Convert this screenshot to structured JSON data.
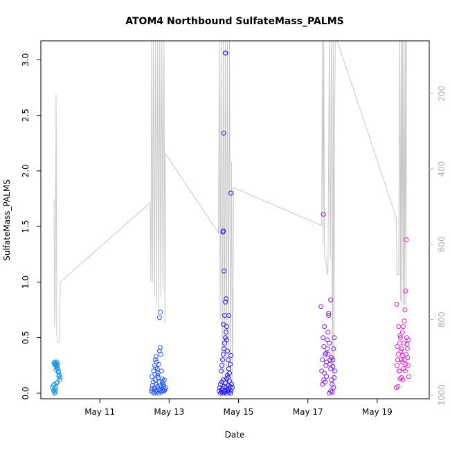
{
  "chart_data": {
    "type": "scatter",
    "title": "ATOM4 Northbound SulfateMass_PALMS",
    "xlabel": "Date",
    "ylabel": "SulfateMass_PALMS",
    "x_unit": "days (May 2017, decimal day of month)",
    "xlim": [
      9.3,
      20.5
    ],
    "ylim": [
      -0.05,
      3.17
    ],
    "x_ticks": [
      {
        "value": 11,
        "label": "May 11"
      },
      {
        "value": 13,
        "label": "May 13"
      },
      {
        "value": 15,
        "label": "May 15"
      },
      {
        "value": 17,
        "label": "May 17"
      },
      {
        "value": 19,
        "label": "May 19"
      }
    ],
    "y_ticks": [
      {
        "value": 0.0,
        "label": "0.0"
      },
      {
        "value": 0.5,
        "label": "0.5"
      },
      {
        "value": 1.0,
        "label": "1.0"
      },
      {
        "value": 1.5,
        "label": "1.5"
      },
      {
        "value": 2.0,
        "label": "2.0"
      },
      {
        "value": 2.5,
        "label": "2.5"
      },
      {
        "value": 3.0,
        "label": "3.0"
      }
    ],
    "y2_ticks": [
      {
        "value": 200,
        "label": "200"
      },
      {
        "value": 400,
        "label": "400"
      },
      {
        "value": 600,
        "label": "600"
      },
      {
        "value": 800,
        "label": "800"
      },
      {
        "value": 1000,
        "label": "1000"
      }
    ],
    "y2_reversed": true,
    "y2_lim": [
      60,
      1010
    ],
    "grid": false,
    "legend": "none",
    "pressure_line": {
      "color": "#c8c8c8",
      "points": [
        [
          9.68,
          480
        ],
        [
          9.7,
          820
        ],
        [
          9.72,
          710
        ],
        [
          9.74,
          200
        ],
        [
          9.76,
          840
        ],
        [
          9.78,
          860
        ],
        [
          9.8,
          860
        ],
        [
          9.82,
          860
        ],
        [
          9.84,
          840
        ],
        [
          9.86,
          700
        ],
        [
          12.45,
          490
        ],
        [
          12.47,
          700
        ],
        [
          12.5,
          50
        ],
        [
          12.52,
          700
        ],
        [
          12.55,
          50
        ],
        [
          12.58,
          740
        ],
        [
          12.61,
          50
        ],
        [
          12.64,
          760
        ],
        [
          12.67,
          50
        ],
        [
          12.7,
          780
        ],
        [
          12.73,
          50
        ],
        [
          12.76,
          740
        ],
        [
          12.79,
          50
        ],
        [
          12.82,
          720
        ],
        [
          12.85,
          50
        ],
        [
          12.88,
          810
        ],
        [
          12.9,
          360
        ],
        [
          14.42,
          570
        ],
        [
          14.45,
          50
        ],
        [
          14.47,
          800
        ],
        [
          14.5,
          50
        ],
        [
          14.53,
          1000
        ],
        [
          14.56,
          50
        ],
        [
          14.59,
          980
        ],
        [
          14.62,
          50
        ],
        [
          14.65,
          1000
        ],
        [
          14.68,
          50
        ],
        [
          14.71,
          980
        ],
        [
          14.74,
          50
        ],
        [
          14.77,
          1000
        ],
        [
          14.8,
          380
        ],
        [
          14.83,
          1000
        ],
        [
          14.86,
          450
        ],
        [
          17.4,
          550
        ],
        [
          17.42,
          50
        ],
        [
          17.44,
          600
        ],
        [
          17.46,
          50
        ],
        [
          17.48,
          620
        ],
        [
          17.5,
          640
        ],
        [
          17.52,
          640
        ],
        [
          17.54,
          660
        ],
        [
          17.56,
          680
        ],
        [
          17.58,
          670
        ],
        [
          17.62,
          50
        ],
        [
          17.65,
          640
        ],
        [
          17.68,
          50
        ],
        [
          17.71,
          1000
        ],
        [
          17.73,
          50
        ],
        [
          17.75,
          1000
        ],
        [
          17.77,
          300
        ],
        [
          17.79,
          50
        ],
        [
          17.81,
          50
        ],
        [
          19.55,
          530
        ],
        [
          19.57,
          680
        ],
        [
          19.6,
          680
        ],
        [
          19.62,
          680
        ],
        [
          19.65,
          50
        ],
        [
          19.67,
          750
        ],
        [
          19.69,
          50
        ],
        [
          19.71,
          760
        ],
        [
          19.73,
          50
        ],
        [
          19.75,
          760
        ],
        [
          19.77,
          50
        ],
        [
          19.79,
          760
        ],
        [
          19.81,
          50
        ],
        [
          19.83,
          760
        ],
        [
          19.85,
          50
        ]
      ]
    },
    "series": [
      {
        "color": "#1e9be6",
        "points": [
          [
            9.64,
            0.05
          ],
          [
            9.66,
            0.07
          ],
          [
            9.67,
            0.02
          ],
          [
            9.68,
            0.03
          ],
          [
            9.69,
            0.08
          ],
          [
            9.7,
            0.0
          ],
          [
            9.71,
            0.01
          ],
          [
            9.68,
            0.27
          ],
          [
            9.69,
            0.26
          ],
          [
            9.7,
            0.28
          ],
          [
            9.72,
            0.25
          ],
          [
            9.73,
            0.27
          ],
          [
            9.74,
            0.26
          ],
          [
            9.75,
            0.24
          ],
          [
            9.76,
            0.28
          ],
          [
            9.77,
            0.25
          ],
          [
            9.78,
            0.26
          ],
          [
            9.79,
            0.22
          ],
          [
            9.8,
            0.19
          ],
          [
            9.81,
            0.2
          ],
          [
            9.82,
            0.15
          ],
          [
            9.83,
            0.17
          ],
          [
            9.84,
            0.16
          ],
          [
            9.85,
            0.12
          ],
          [
            9.86,
            0.14
          ],
          [
            9.75,
            0.09
          ],
          [
            9.73,
            0.06
          ],
          [
            9.72,
            0.04
          ],
          [
            9.71,
            0.02
          ],
          [
            9.74,
            0.21
          ],
          [
            9.76,
            0.23
          ],
          [
            9.78,
            0.1
          ]
        ]
      },
      {
        "color": "#2a59f0",
        "points": [
          [
            12.48,
            0.02
          ],
          [
            12.5,
            0.04
          ],
          [
            12.52,
            0.07
          ],
          [
            12.54,
            0.1
          ],
          [
            12.56,
            0.03
          ],
          [
            12.58,
            0.05
          ],
          [
            12.6,
            0.12
          ],
          [
            12.62,
            0.08
          ],
          [
            12.64,
            0.02
          ],
          [
            12.66,
            0.06
          ],
          [
            12.68,
            0.14
          ],
          [
            12.7,
            0.04
          ],
          [
            12.72,
            0.1
          ],
          [
            12.74,
            0.03
          ],
          [
            12.76,
            0.07
          ],
          [
            12.78,
            0.05
          ],
          [
            12.8,
            0.09
          ],
          [
            12.82,
            0.02
          ],
          [
            12.84,
            0.06
          ],
          [
            12.86,
            0.04
          ],
          [
            12.5,
            0.15
          ],
          [
            12.55,
            0.2
          ],
          [
            12.58,
            0.25
          ],
          [
            12.6,
            0.3
          ],
          [
            12.62,
            0.33
          ],
          [
            12.64,
            0.28
          ],
          [
            12.66,
            0.22
          ],
          [
            12.68,
            0.18
          ],
          [
            12.7,
            0.26
          ],
          [
            12.72,
            0.38
          ],
          [
            12.74,
            0.41
          ],
          [
            12.76,
            0.35
          ],
          [
            12.78,
            0.2
          ],
          [
            12.8,
            0.13
          ],
          [
            12.82,
            0.11
          ],
          [
            12.84,
            0.08
          ],
          [
            12.86,
            0.12
          ],
          [
            12.88,
            0.03
          ],
          [
            12.9,
            0.05
          ],
          [
            12.72,
            0.68
          ],
          [
            12.75,
            0.73
          ],
          [
            12.53,
            0.01
          ],
          [
            12.57,
            0.0
          ],
          [
            12.63,
            0.01
          ],
          [
            12.69,
            0.0
          ],
          [
            12.73,
            0.02
          ],
          [
            12.77,
            0.01
          ],
          [
            12.81,
            0.03
          ],
          [
            12.85,
            0.02
          ],
          [
            12.59,
            0.17
          ],
          [
            12.61,
            0.23
          ],
          [
            12.67,
            0.16
          ]
        ]
      },
      {
        "color": "#2a1ee8",
        "points": [
          [
            14.44,
            0.02
          ],
          [
            14.46,
            0.05
          ],
          [
            14.48,
            0.08
          ],
          [
            14.5,
            0.03
          ],
          [
            14.52,
            0.1
          ],
          [
            14.54,
            0.04
          ],
          [
            14.56,
            0.12
          ],
          [
            14.58,
            0.06
          ],
          [
            14.6,
            0.02
          ],
          [
            14.62,
            0.09
          ],
          [
            14.64,
            0.05
          ],
          [
            14.66,
            0.13
          ],
          [
            14.68,
            0.03
          ],
          [
            14.7,
            0.07
          ],
          [
            14.72,
            0.04
          ],
          [
            14.74,
            0.11
          ],
          [
            14.76,
            0.06
          ],
          [
            14.78,
            0.02
          ],
          [
            14.8,
            0.08
          ],
          [
            14.82,
            0.05
          ],
          [
            14.5,
            0.2
          ],
          [
            14.52,
            0.25
          ],
          [
            14.54,
            0.3
          ],
          [
            14.56,
            0.35
          ],
          [
            14.58,
            0.4
          ],
          [
            14.6,
            0.45
          ],
          [
            14.62,
            0.5
          ],
          [
            14.64,
            0.55
          ],
          [
            14.66,
            0.48
          ],
          [
            14.68,
            0.38
          ],
          [
            14.7,
            0.3
          ],
          [
            14.72,
            0.22
          ],
          [
            14.74,
            0.18
          ],
          [
            14.76,
            0.26
          ],
          [
            14.78,
            0.34
          ],
          [
            14.56,
            0.62
          ],
          [
            14.6,
            0.7
          ],
          [
            14.62,
            0.82
          ],
          [
            14.64,
            0.85
          ],
          [
            14.58,
            1.1
          ],
          [
            14.55,
            1.45
          ],
          [
            14.56,
            1.46
          ],
          [
            14.57,
            2.34
          ],
          [
            14.62,
            3.06
          ],
          [
            14.63,
            3.06
          ],
          [
            14.78,
            1.8
          ],
          [
            14.72,
            0.7
          ],
          [
            14.66,
            0.6
          ],
          [
            14.68,
            0.16
          ],
          [
            14.7,
            0.14
          ],
          [
            14.48,
            0.0
          ],
          [
            14.52,
            0.01
          ],
          [
            14.57,
            0.0
          ],
          [
            14.61,
            0.01
          ],
          [
            14.65,
            0.0
          ],
          [
            14.69,
            0.02
          ],
          [
            14.73,
            0.01
          ],
          [
            14.77,
            0.0
          ]
        ]
      },
      {
        "color": "#8a1ee8",
        "points": [
          [
            17.4,
            0.2
          ],
          [
            17.42,
            0.3
          ],
          [
            17.44,
            0.5
          ],
          [
            17.46,
            0.42
          ],
          [
            17.48,
            0.6
          ],
          [
            17.5,
            0.35
          ],
          [
            17.52,
            0.25
          ],
          [
            17.54,
            0.15
          ],
          [
            17.56,
            0.4
          ],
          [
            17.58,
            0.55
          ],
          [
            17.6,
            0.7
          ],
          [
            17.62,
            0.45
          ],
          [
            17.64,
            0.3
          ],
          [
            17.66,
            0.22
          ],
          [
            17.68,
            0.12
          ],
          [
            17.7,
            0.08
          ],
          [
            17.72,
            0.3
          ],
          [
            17.74,
            0.4
          ],
          [
            17.76,
            0.5
          ],
          [
            17.78,
            0.2
          ],
          [
            17.42,
            0.08
          ],
          [
            17.46,
            0.12
          ],
          [
            17.5,
            0.1
          ],
          [
            17.54,
            0.28
          ],
          [
            17.58,
            0.35
          ],
          [
            17.62,
            0.0
          ],
          [
            17.66,
            0.02
          ],
          [
            17.7,
            0.01
          ],
          [
            17.74,
            0.05
          ],
          [
            17.38,
            0.78
          ],
          [
            17.45,
            1.61
          ],
          [
            17.66,
            0.84
          ],
          [
            17.6,
            0.72
          ],
          [
            17.56,
            0.48
          ],
          [
            17.64,
            0.26
          ],
          [
            17.48,
            0.18
          ],
          [
            17.52,
            0.36
          ],
          [
            17.68,
            0.32
          ],
          [
            17.72,
            0.24
          ],
          [
            17.76,
            0.14
          ]
        ]
      },
      {
        "color": "#e61ed2",
        "points": [
          [
            19.55,
            0.05
          ],
          [
            19.57,
            0.25
          ],
          [
            19.59,
            0.3
          ],
          [
            19.61,
            0.35
          ],
          [
            19.63,
            0.2
          ],
          [
            19.65,
            0.45
          ],
          [
            19.67,
            0.5
          ],
          [
            19.69,
            0.3
          ],
          [
            19.71,
            0.4
          ],
          [
            19.73,
            0.55
          ],
          [
            19.75,
            0.6
          ],
          [
            19.77,
            0.45
          ],
          [
            19.79,
            0.3
          ],
          [
            19.81,
            0.2
          ],
          [
            19.83,
            0.35
          ],
          [
            19.85,
            0.5
          ],
          [
            19.87,
            0.4
          ],
          [
            19.89,
            0.25
          ],
          [
            19.91,
            0.15
          ],
          [
            19.56,
            0.8
          ],
          [
            19.62,
            0.6
          ],
          [
            19.66,
            0.13
          ],
          [
            19.7,
            0.14
          ],
          [
            19.74,
            0.12
          ],
          [
            19.78,
            0.65
          ],
          [
            19.8,
            0.75
          ],
          [
            19.82,
            0.92
          ],
          [
            19.84,
            1.38
          ],
          [
            19.6,
            0.06
          ],
          [
            19.64,
            0.2
          ],
          [
            19.68,
            0.38
          ],
          [
            19.72,
            0.28
          ],
          [
            19.76,
            0.22
          ],
          [
            19.86,
            0.44
          ],
          [
            19.88,
            0.32
          ],
          [
            19.58,
            0.42
          ],
          [
            19.66,
            0.52
          ],
          [
            19.74,
            0.34
          ],
          [
            19.82,
            0.26
          ],
          [
            19.9,
            0.48
          ]
        ]
      }
    ]
  }
}
